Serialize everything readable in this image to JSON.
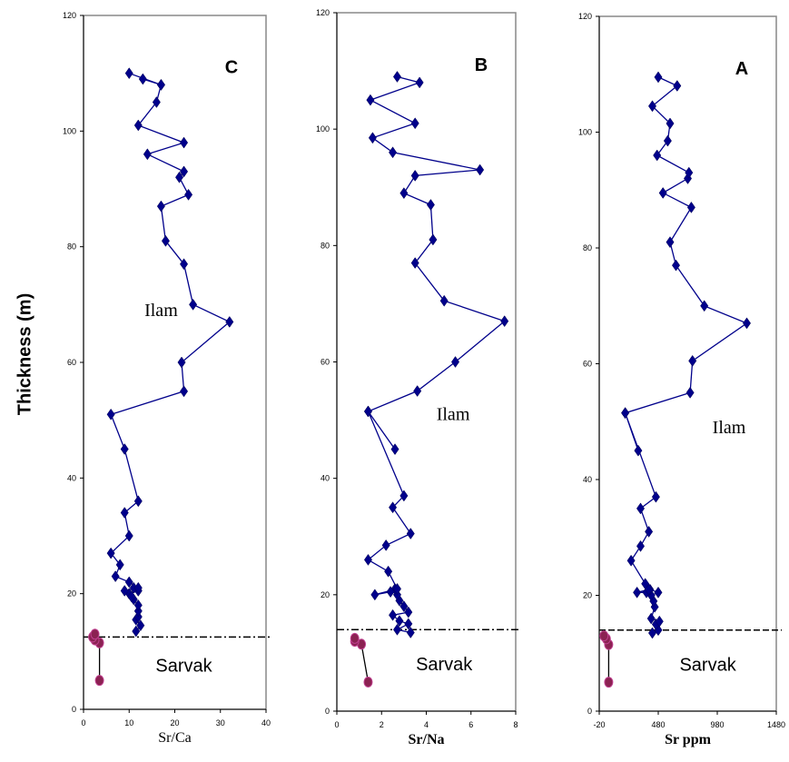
{
  "ylabel": "Thickness (m)",
  "chart_data": [
    {
      "type": "line",
      "title": "C",
      "xlabel": "Sr/Ca",
      "xlim": [
        0,
        40
      ],
      "ylim": [
        0,
        120
      ],
      "xticks": [
        0,
        10,
        20,
        30,
        40
      ],
      "yticks": [
        0,
        20,
        40,
        60,
        80,
        100,
        120
      ],
      "boundary_y": 12.5,
      "annotations": [
        {
          "text": "Ilam",
          "x": 17,
          "y": 68,
          "style": "serif"
        },
        {
          "text": "Sarvak",
          "x": 22,
          "y": 6.5,
          "style": "sans"
        }
      ],
      "series": [
        {
          "marker": "diamond",
          "color": "#00008B",
          "x": [
            11.5,
            12.5,
            11.5,
            12,
            12,
            12,
            11,
            10,
            12,
            11,
            10.5,
            9,
            12,
            10,
            7,
            8,
            6,
            10,
            9,
            12,
            9,
            6,
            22,
            21.5,
            32,
            24,
            22,
            18,
            17,
            23,
            21,
            22,
            14,
            22,
            12,
            16,
            17,
            10,
            17,
            13
          ],
          "y": [
            13.5,
            14.5,
            15.5,
            16,
            17,
            18,
            19,
            20,
            20.5,
            21,
            19.5,
            20.5,
            21,
            22,
            23,
            25,
            27,
            30,
            34,
            36,
            45,
            51,
            55,
            60,
            67,
            70,
            77,
            81,
            87,
            89,
            92,
            93,
            96,
            98,
            101,
            105,
            108,
            110,
            108,
            109
          ]
        },
        {
          "marker": "circle",
          "color": "#8B2252",
          "x": [
            3.5,
            3.5,
            2.5,
            2,
            2.5
          ],
          "y": [
            5,
            11.5,
            12,
            12.5,
            13
          ]
        }
      ]
    },
    {
      "type": "line",
      "title": "B",
      "xlabel": "Sr/Na",
      "xlim": [
        0,
        8
      ],
      "ylim": [
        0,
        120
      ],
      "xticks": [
        0,
        2,
        4,
        6,
        8
      ],
      "yticks": [
        0,
        20,
        40,
        60,
        80,
        100,
        120
      ],
      "boundary_y": 14,
      "annotations": [
        {
          "text": "Ilam",
          "x": 5.2,
          "y": 50,
          "style": "serif"
        },
        {
          "text": "Sarvak",
          "x": 4.8,
          "y": 7,
          "style": "sans"
        }
      ],
      "series": [
        {
          "marker": "diamond",
          "color": "#00008B",
          "x": [
            3.3,
            2.7,
            3.2,
            2.8,
            2.5,
            3.2,
            3,
            2.8,
            2.7,
            2.6,
            2.4,
            1.7,
            2.7,
            2.3,
            1.4,
            2.2,
            3.3,
            2.5,
            3,
            1.4,
            2.6,
            1.4,
            3.6,
            5.3,
            7.5,
            4.8,
            3.5,
            4.3,
            4.2,
            3,
            3.5,
            6.4,
            2.5,
            1.6,
            3.5,
            1.5,
            3.7,
            2.7
          ],
          "y": [
            13.5,
            14,
            15,
            15.5,
            16.5,
            17,
            18,
            19,
            20,
            21,
            20.5,
            20,
            21,
            24,
            26,
            28.5,
            30.5,
            35,
            37,
            51.5,
            45,
            51.5,
            55,
            60,
            67,
            70.5,
            77,
            81,
            87,
            89,
            92,
            93,
            96,
            98.5,
            101,
            105,
            108,
            109
          ]
        },
        {
          "marker": "circle",
          "color": "#8B2252",
          "x": [
            1.4,
            1.1,
            0.8,
            0.8
          ],
          "y": [
            5,
            11.5,
            12,
            12.5
          ]
        }
      ]
    },
    {
      "type": "line",
      "title": "A",
      "xlabel": "Sr ppm",
      "xlim": [
        -20,
        1480
      ],
      "ylim": [
        0,
        120
      ],
      "xticks": [
        -20,
        480,
        980,
        1480
      ],
      "yticks": [
        0,
        20,
        40,
        60,
        80,
        100,
        120
      ],
      "boundary_y": 14,
      "annotations": [
        {
          "text": "Ilam",
          "x": 1080,
          "y": 48,
          "style": "serif"
        },
        {
          "text": "Sarvak",
          "x": 900,
          "y": 7,
          "style": "sans"
        }
      ],
      "series": [
        {
          "marker": "diamond",
          "color": "#00008B",
          "x": [
            430,
            480,
            460,
            490,
            420,
            450,
            440,
            420,
            480,
            410,
            380,
            300,
            400,
            370,
            250,
            330,
            400,
            330,
            460,
            200,
            310,
            200,
            750,
            770,
            1230,
            870,
            630,
            580,
            760,
            520,
            730,
            740,
            470,
            560,
            580,
            430,
            640,
            480
          ],
          "y": [
            13.5,
            14,
            15,
            15.5,
            16,
            18,
            19,
            20,
            20.5,
            21,
            20.5,
            20.5,
            21,
            22,
            26,
            28.5,
            31,
            35,
            37,
            51.5,
            45,
            51.5,
            55,
            60.5,
            67,
            70,
            77,
            81,
            87,
            89.5,
            92,
            93,
            96,
            98.5,
            101.5,
            104.5,
            108,
            109.5
          ]
        },
        {
          "marker": "circle",
          "color": "#8B2252",
          "x": [
            60,
            60,
            40,
            20
          ],
          "y": [
            5,
            11.5,
            12.5,
            13
          ]
        }
      ]
    }
  ]
}
